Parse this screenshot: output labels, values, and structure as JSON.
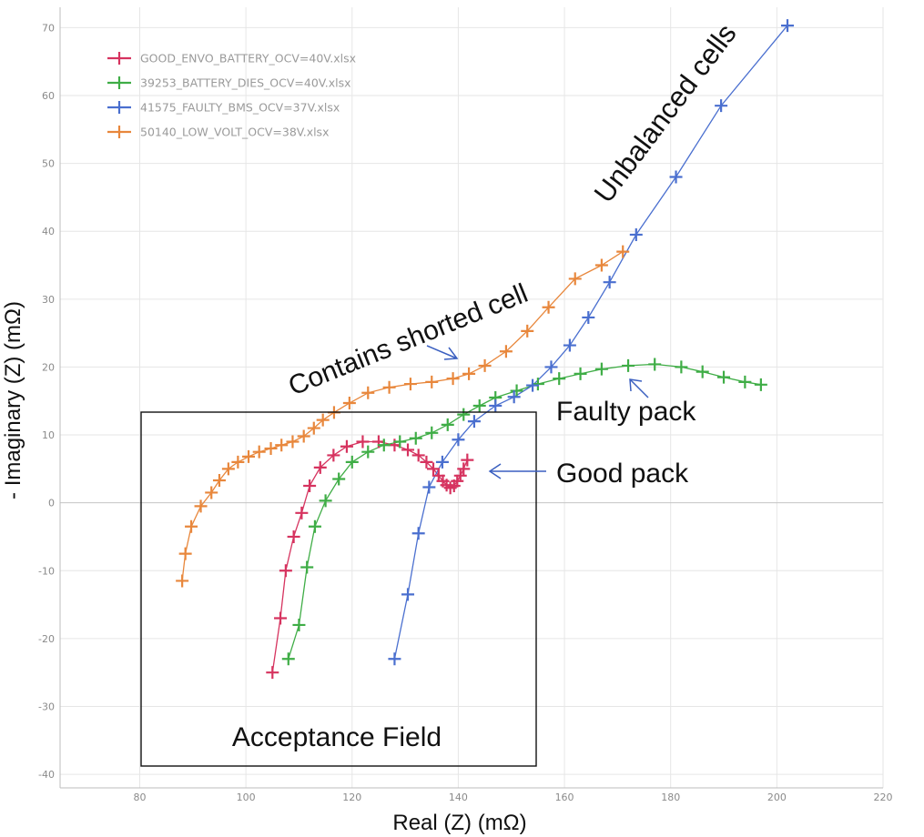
{
  "chart_data": {
    "type": "scatter",
    "title": "",
    "xlabel": "Real (Z) (mΩ)",
    "ylabel": "- Imaginary (Z) (mΩ)",
    "xlim": [
      65,
      220
    ],
    "ylim": [
      -42,
      73
    ],
    "x_ticks": [
      "80",
      "100",
      "120",
      "140",
      "160",
      "180",
      "200",
      "220"
    ],
    "y_ticks": [
      "-40",
      "-30",
      "-20",
      "-10",
      "0",
      "10",
      "20",
      "30",
      "40",
      "50",
      "60",
      "70"
    ],
    "grid": true,
    "legend_position": "top-left",
    "series": [
      {
        "name": "GOOD_ENVO_BATTERY_OCV=40V.xlsx",
        "color": "#d6335f",
        "points": [
          [
            105,
            -25
          ],
          [
            106.5,
            -17
          ],
          [
            107.5,
            -10
          ],
          [
            109,
            -5
          ],
          [
            110.5,
            -1.5
          ],
          [
            112,
            2.5
          ],
          [
            114,
            5.2
          ],
          [
            116.5,
            7
          ],
          [
            119,
            8.3
          ],
          [
            122,
            9
          ],
          [
            125,
            9
          ],
          [
            128,
            8.5
          ],
          [
            130.5,
            7.8
          ],
          [
            132.5,
            7
          ],
          [
            134,
            6
          ],
          [
            135.3,
            5
          ],
          [
            136.3,
            4
          ],
          [
            137.1,
            3.2
          ],
          [
            137.8,
            2.6
          ],
          [
            138.5,
            2.2
          ],
          [
            139.2,
            2.5
          ],
          [
            139.8,
            3.2
          ],
          [
            140.4,
            4
          ],
          [
            141,
            5
          ],
          [
            141.7,
            6.3
          ]
        ]
      },
      {
        "name": "39253_BATTERY_DIES_OCV=40V.xlsx",
        "color": "#3fad46",
        "points": [
          [
            108,
            -23
          ],
          [
            110,
            -18
          ],
          [
            111.5,
            -9.5
          ],
          [
            113,
            -3.5
          ],
          [
            115,
            0.3
          ],
          [
            117.5,
            3.5
          ],
          [
            120,
            6
          ],
          [
            123,
            7.5
          ],
          [
            126,
            8.5
          ],
          [
            129,
            9
          ],
          [
            132,
            9.5
          ],
          [
            135,
            10.3
          ],
          [
            138,
            11.5
          ],
          [
            141,
            13
          ],
          [
            144,
            14.3
          ],
          [
            147,
            15.5
          ],
          [
            151,
            16.5
          ],
          [
            155,
            17.5
          ],
          [
            159,
            18.3
          ],
          [
            163,
            19
          ],
          [
            167,
            19.7
          ],
          [
            172,
            20.2
          ],
          [
            177,
            20.4
          ],
          [
            182,
            20
          ],
          [
            186,
            19.3
          ],
          [
            190,
            18.5
          ],
          [
            194,
            17.8
          ],
          [
            197,
            17.4
          ]
        ]
      },
      {
        "name": "41575_FAULTY_BMS_OCV=37V.xlsx",
        "color": "#4a6fcf",
        "points": [
          [
            128,
            -23
          ],
          [
            130.5,
            -13.5
          ],
          [
            132.5,
            -4.5
          ],
          [
            134.5,
            2.3
          ],
          [
            137,
            6
          ],
          [
            140,
            9.3
          ],
          [
            143,
            12
          ],
          [
            147,
            14.3
          ],
          [
            150.5,
            15.6
          ],
          [
            154,
            17.3
          ],
          [
            157.5,
            20
          ],
          [
            161,
            23.2
          ],
          [
            164.5,
            27.3
          ],
          [
            168.5,
            32.5
          ],
          [
            173.5,
            39.5
          ],
          [
            181,
            48
          ],
          [
            189.5,
            58.5
          ],
          [
            202,
            70.3
          ]
        ]
      },
      {
        "name": "50140_LOW_VOLT_OCV=38V.xlsx",
        "color": "#e8873c",
        "points": [
          [
            88,
            -11.5
          ],
          [
            88.6,
            -7.5
          ],
          [
            89.7,
            -3.5
          ],
          [
            91.5,
            -0.5
          ],
          [
            93.5,
            1.5
          ],
          [
            95,
            3.3
          ],
          [
            96.7,
            5
          ],
          [
            98.5,
            6
          ],
          [
            100.5,
            6.8
          ],
          [
            102.5,
            7.5
          ],
          [
            104.7,
            8
          ],
          [
            106.7,
            8.5
          ],
          [
            108.8,
            9
          ],
          [
            110.9,
            9.8
          ],
          [
            112.8,
            11
          ],
          [
            114.5,
            12.2
          ],
          [
            116.6,
            13.3
          ],
          [
            119.5,
            14.7
          ],
          [
            123,
            16.2
          ],
          [
            127,
            17
          ],
          [
            131,
            17.5
          ],
          [
            135,
            17.8
          ],
          [
            139,
            18.3
          ],
          [
            142,
            19
          ],
          [
            145,
            20.2
          ],
          [
            149,
            22.3
          ],
          [
            153,
            25.3
          ],
          [
            157,
            28.8
          ],
          [
            162,
            33
          ],
          [
            167,
            35
          ],
          [
            171,
            37
          ]
        ]
      }
    ],
    "annotations": {
      "unbalanced": "Unbalanced cells",
      "shorted": "Contains shorted cell",
      "faulty": "Faulty pack",
      "good": "Good pack",
      "acceptance": "Acceptance Field"
    }
  }
}
